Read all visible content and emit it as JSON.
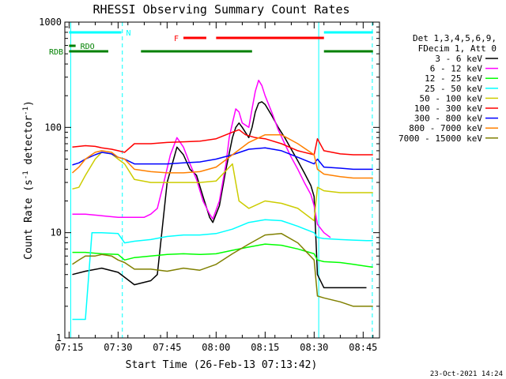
{
  "chart_data": {
    "type": "line",
    "title": "RHESSI Observing Summary Count Rates",
    "xlabel": "Start Time (26-Feb-13 07:13:42)",
    "ylabel": "Count Rate (s",
    "ylabel_sup": "-1",
    "ylabel_tail": " detector",
    "ylabel_close": ")",
    "timestamp": "23-Oct-2021 14:24",
    "x_range_minutes": [
      433.7,
      530.0
    ],
    "ylim": [
      1,
      1000
    ],
    "yscale": "log",
    "x_ticks": [
      {
        "t": 435,
        "label": "07:15"
      },
      {
        "t": 450,
        "label": "07:30"
      },
      {
        "t": 465,
        "label": "07:45"
      },
      {
        "t": 480,
        "label": "08:00"
      },
      {
        "t": 495,
        "label": "08:15"
      },
      {
        "t": 510,
        "label": "08:30"
      },
      {
        "t": 525,
        "label": "08:45"
      }
    ],
    "y_ticks": [
      {
        "v": 1,
        "label": "1"
      },
      {
        "v": 10,
        "label": "10"
      },
      {
        "v": 100,
        "label": "100"
      },
      {
        "v": 1000,
        "label": "1000"
      }
    ],
    "legend_header": [
      "Det 1,3,4,5,6,9,",
      "FDecim 1, Att 0"
    ],
    "series": [
      {
        "name": "3 - 6 keV",
        "color": "#000000",
        "points": [
          [
            436,
            4
          ],
          [
            440,
            4.3
          ],
          [
            445,
            4.6
          ],
          [
            450,
            4.2
          ],
          [
            455,
            3.2
          ],
          [
            460,
            3.5
          ],
          [
            462,
            4
          ],
          [
            465,
            30
          ],
          [
            467,
            50
          ],
          [
            468,
            65
          ],
          [
            470,
            55
          ],
          [
            472,
            40
          ],
          [
            474,
            35
          ],
          [
            476,
            22
          ],
          [
            478,
            14
          ],
          [
            479,
            12.5
          ],
          [
            481,
            18
          ],
          [
            483,
            40
          ],
          [
            485,
            80
          ],
          [
            486,
            100
          ],
          [
            487,
            110
          ],
          [
            488,
            100
          ],
          [
            490,
            80
          ],
          [
            491,
            100
          ],
          [
            492,
            140
          ],
          [
            493,
            170
          ],
          [
            494,
            175
          ],
          [
            495,
            165
          ],
          [
            497,
            130
          ],
          [
            499,
            100
          ],
          [
            501,
            80
          ],
          [
            503,
            62
          ],
          [
            505,
            48
          ],
          [
            507,
            37
          ],
          [
            509,
            28
          ],
          [
            510,
            22
          ],
          [
            511,
            4
          ],
          [
            513,
            3
          ],
          [
            518,
            3
          ],
          [
            522,
            3
          ],
          [
            526,
            3
          ]
        ]
      },
      {
        "name": "6 - 12 keV",
        "color": "#ff00ff",
        "points": [
          [
            436,
            15
          ],
          [
            440,
            15
          ],
          [
            445,
            14.5
          ],
          [
            450,
            14
          ],
          [
            455,
            14
          ],
          [
            458,
            14
          ],
          [
            460,
            15
          ],
          [
            462,
            17
          ],
          [
            464,
            30
          ],
          [
            466,
            55
          ],
          [
            468,
            80
          ],
          [
            470,
            65
          ],
          [
            472,
            45
          ],
          [
            474,
            32
          ],
          [
            476,
            20
          ],
          [
            478,
            15
          ],
          [
            479,
            13.5
          ],
          [
            481,
            20
          ],
          [
            483,
            45
          ],
          [
            484,
            80
          ],
          [
            485,
            110
          ],
          [
            486,
            150
          ],
          [
            487,
            140
          ],
          [
            488,
            110
          ],
          [
            490,
            100
          ],
          [
            491,
            150
          ],
          [
            492,
            220
          ],
          [
            493,
            280
          ],
          [
            494,
            250
          ],
          [
            495,
            200
          ],
          [
            497,
            140
          ],
          [
            499,
            95
          ],
          [
            501,
            70
          ],
          [
            503,
            52
          ],
          [
            505,
            40
          ],
          [
            507,
            30
          ],
          [
            509,
            23
          ],
          [
            510,
            18
          ],
          [
            511,
            12
          ],
          [
            513,
            10
          ],
          [
            515,
            9
          ]
        ]
      },
      {
        "name": "12 - 25 keV",
        "color": "#00ff00",
        "points": [
          [
            436,
            6.5
          ],
          [
            440,
            6.5
          ],
          [
            445,
            6.3
          ],
          [
            450,
            6.2
          ],
          [
            452,
            5.5
          ],
          [
            455,
            5.8
          ],
          [
            460,
            6
          ],
          [
            465,
            6.2
          ],
          [
            470,
            6.3
          ],
          [
            475,
            6.2
          ],
          [
            480,
            6.3
          ],
          [
            485,
            6.8
          ],
          [
            490,
            7.3
          ],
          [
            495,
            7.8
          ],
          [
            500,
            7.6
          ],
          [
            505,
            7
          ],
          [
            510,
            6.3
          ],
          [
            511,
            5.5
          ],
          [
            513,
            5.3
          ],
          [
            518,
            5.2
          ],
          [
            522,
            5
          ],
          [
            526,
            4.8
          ],
          [
            528,
            4.7
          ]
        ]
      },
      {
        "name": "25 - 50 keV",
        "color": "#00ffff",
        "points": [
          [
            436,
            1.5
          ],
          [
            440,
            1.5
          ],
          [
            442,
            10
          ],
          [
            445,
            10
          ],
          [
            450,
            9.8
          ],
          [
            452,
            8
          ],
          [
            455,
            8.3
          ],
          [
            460,
            8.6
          ],
          [
            465,
            9.2
          ],
          [
            470,
            9.5
          ],
          [
            475,
            9.5
          ],
          [
            480,
            9.8
          ],
          [
            485,
            10.8
          ],
          [
            490,
            12.5
          ],
          [
            495,
            13.3
          ],
          [
            500,
            13
          ],
          [
            505,
            11.5
          ],
          [
            510,
            10
          ],
          [
            511,
            9
          ],
          [
            513,
            8.8
          ],
          [
            518,
            8.6
          ],
          [
            522,
            8.5
          ],
          [
            526,
            8.4
          ],
          [
            528,
            8.4
          ]
        ]
      },
      {
        "name": "50 - 100 keV",
        "color": "#cccc00",
        "points": [
          [
            436,
            26
          ],
          [
            438,
            27
          ],
          [
            440,
            35
          ],
          [
            443,
            50
          ],
          [
            445,
            58
          ],
          [
            448,
            56
          ],
          [
            450,
            50
          ],
          [
            452,
            45
          ],
          [
            455,
            32
          ],
          [
            460,
            30
          ],
          [
            465,
            30
          ],
          [
            470,
            30
          ],
          [
            475,
            30
          ],
          [
            480,
            31
          ],
          [
            485,
            45
          ],
          [
            487,
            20
          ],
          [
            490,
            17
          ],
          [
            495,
            20
          ],
          [
            500,
            19
          ],
          [
            505,
            17
          ],
          [
            510,
            13
          ],
          [
            511,
            27
          ],
          [
            513,
            25
          ],
          [
            518,
            24
          ],
          [
            522,
            24
          ],
          [
            526,
            24
          ],
          [
            528,
            24
          ]
        ]
      },
      {
        "name": "100 - 300 keV",
        "color": "#ff0000",
        "points": [
          [
            436,
            65
          ],
          [
            438,
            66
          ],
          [
            440,
            67
          ],
          [
            443,
            66
          ],
          [
            445,
            64
          ],
          [
            448,
            62
          ],
          [
            450,
            60
          ],
          [
            452,
            58
          ],
          [
            455,
            70
          ],
          [
            460,
            70
          ],
          [
            465,
            72
          ],
          [
            470,
            73
          ],
          [
            475,
            74
          ],
          [
            480,
            78
          ],
          [
            485,
            90
          ],
          [
            487,
            95
          ],
          [
            489,
            85
          ],
          [
            492,
            80
          ],
          [
            495,
            78
          ],
          [
            500,
            70
          ],
          [
            505,
            60
          ],
          [
            510,
            55
          ],
          [
            511,
            78
          ],
          [
            513,
            60
          ],
          [
            518,
            56
          ],
          [
            522,
            55
          ],
          [
            526,
            55
          ],
          [
            528,
            55
          ]
        ]
      },
      {
        "name": "300 - 800 keV",
        "color": "#0000ff",
        "points": [
          [
            436,
            44
          ],
          [
            438,
            46
          ],
          [
            440,
            50
          ],
          [
            443,
            55
          ],
          [
            445,
            58
          ],
          [
            448,
            56
          ],
          [
            450,
            52
          ],
          [
            452,
            50
          ],
          [
            455,
            45
          ],
          [
            460,
            45
          ],
          [
            465,
            45
          ],
          [
            470,
            46
          ],
          [
            475,
            47
          ],
          [
            480,
            50
          ],
          [
            485,
            55
          ],
          [
            490,
            62
          ],
          [
            495,
            64
          ],
          [
            500,
            60
          ],
          [
            505,
            52
          ],
          [
            510,
            45
          ],
          [
            511,
            50
          ],
          [
            513,
            42
          ],
          [
            518,
            41
          ],
          [
            522,
            40
          ],
          [
            526,
            40
          ],
          [
            528,
            40
          ]
        ]
      },
      {
        "name": "800 - 7000 keV",
        "color": "#ff8000",
        "points": [
          [
            436,
            37
          ],
          [
            438,
            42
          ],
          [
            440,
            50
          ],
          [
            443,
            58
          ],
          [
            445,
            60
          ],
          [
            448,
            58
          ],
          [
            450,
            52
          ],
          [
            452,
            50
          ],
          [
            455,
            40
          ],
          [
            460,
            38
          ],
          [
            465,
            37
          ],
          [
            470,
            37
          ],
          [
            475,
            38
          ],
          [
            480,
            42
          ],
          [
            485,
            55
          ],
          [
            490,
            72
          ],
          [
            495,
            85
          ],
          [
            500,
            85
          ],
          [
            505,
            70
          ],
          [
            510,
            55
          ],
          [
            511,
            40
          ],
          [
            513,
            36
          ],
          [
            518,
            34
          ],
          [
            522,
            33
          ],
          [
            526,
            33
          ],
          [
            528,
            33
          ]
        ]
      },
      {
        "name": "7000 - 15000 keV",
        "color": "#808000",
        "points": [
          [
            436,
            5
          ],
          [
            438,
            5.5
          ],
          [
            440,
            6
          ],
          [
            443,
            6
          ],
          [
            445,
            6.2
          ],
          [
            448,
            6
          ],
          [
            450,
            5.5
          ],
          [
            452,
            5.2
          ],
          [
            455,
            4.5
          ],
          [
            460,
            4.5
          ],
          [
            465,
            4.3
          ],
          [
            470,
            4.6
          ],
          [
            475,
            4.4
          ],
          [
            480,
            5
          ],
          [
            485,
            6.3
          ],
          [
            490,
            7.8
          ],
          [
            495,
            9.5
          ],
          [
            500,
            9.8
          ],
          [
            505,
            8
          ],
          [
            510,
            5.5
          ],
          [
            511,
            2.5
          ],
          [
            513,
            2.4
          ],
          [
            518,
            2.2
          ],
          [
            522,
            2
          ],
          [
            526,
            2
          ],
          [
            528,
            2
          ]
        ]
      }
    ],
    "status_bars": [
      {
        "label": "N",
        "color": "#00ffff",
        "segments": [
          [
            435,
            451
          ],
          [
            513,
            528
          ]
        ]
      },
      {
        "label": "F",
        "color": "#ff0000",
        "segments": [
          [
            470,
            477
          ],
          [
            480,
            513
          ]
        ]
      },
      {
        "label": "RDO",
        "color": "#008000",
        "segments": [
          [
            435,
            437
          ]
        ]
      },
      {
        "label": "RDB",
        "color": "#008000",
        "segments": [
          [
            435,
            447
          ],
          [
            457,
            491
          ],
          [
            513,
            528
          ]
        ]
      }
    ],
    "vlines": [
      {
        "t": 435.5,
        "color": "#00ffff",
        "style": "solid"
      },
      {
        "t": 451.3,
        "color": "#00ffff",
        "style": "dashed"
      },
      {
        "t": 511.4,
        "color": "#00ffff",
        "style": "solid"
      },
      {
        "t": 527.8,
        "color": "#00ffff",
        "style": "dashed"
      }
    ]
  }
}
